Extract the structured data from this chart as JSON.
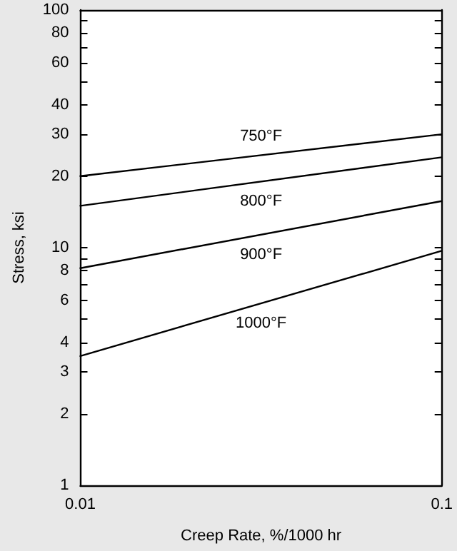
{
  "chart_data": {
    "type": "line",
    "xlabel": "Creep Rate, %/1000 hr",
    "ylabel": "Stress, ksi",
    "log": "xy",
    "grid": false,
    "legend": false,
    "marker": "none",
    "line_style": "solid",
    "x": [
      0.01,
      0.1
    ],
    "xlim": [
      0.01,
      0.1
    ],
    "xticks": [
      0.01,
      0.1
    ],
    "ylim": [
      1,
      100
    ],
    "yticks": [
      1,
      2,
      3,
      4,
      {
        "value": 5,
        "label": null
      },
      6,
      {
        "value": 7,
        "label": null
      },
      8,
      {
        "value": 9,
        "label": null
      },
      10,
      20,
      30,
      40,
      {
        "value": 50,
        "label": null
      },
      60,
      {
        "value": 70,
        "label": null
      },
      80,
      {
        "value": 90,
        "label": null
      },
      100
    ],
    "series": [
      {
        "name": "750°F",
        "color": "#000000",
        "values": [
          20,
          30
        ]
      },
      {
        "name": "800°F",
        "color": "#000000",
        "values": [
          15,
          24
        ]
      },
      {
        "name": "900°F",
        "color": "#000000",
        "values": [
          8.2,
          15.7
        ]
      },
      {
        "name": "1000°F",
        "color": "#000000",
        "values": [
          3.5,
          9.7
        ]
      }
    ]
  }
}
